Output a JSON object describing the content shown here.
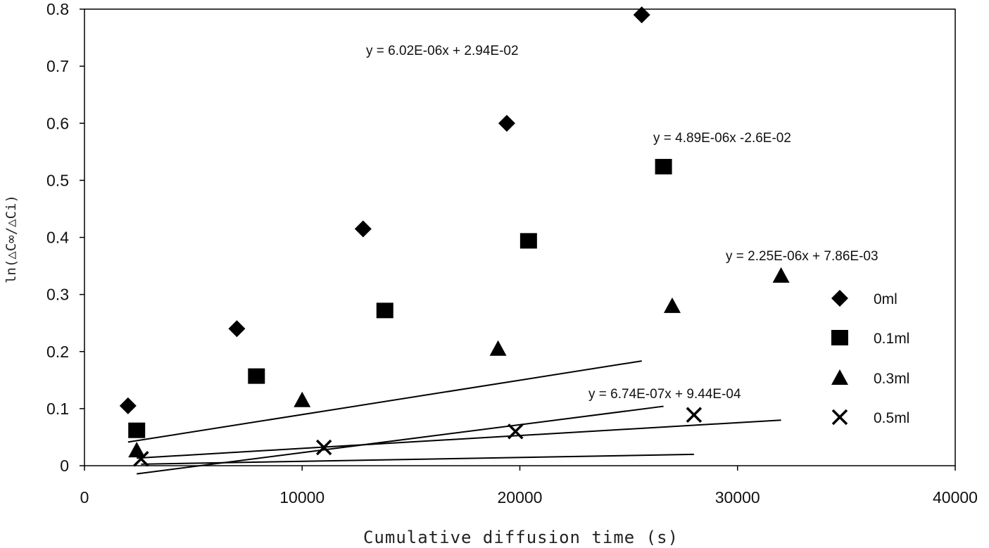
{
  "chart_data": {
    "type": "scatter",
    "xlabel": "Cumulative diffusion time (s)",
    "ylabel": "ln(△C∞/△Ci)",
    "xlim": [
      0,
      40000
    ],
    "ylim": [
      0,
      0.8
    ],
    "x_ticks": [
      "0",
      "10000",
      "20000",
      "30000",
      "40000"
    ],
    "y_ticks": [
      "0",
      "0.1",
      "0.2",
      "0.3",
      "0.4",
      "0.5",
      "0.6",
      "0.7",
      "0.8"
    ],
    "grid": false,
    "legend_position": "right",
    "series": [
      {
        "name": "0ml",
        "marker": "diamond",
        "points": [
          [
            2000,
            0.105
          ],
          [
            7000,
            0.24
          ],
          [
            12800,
            0.415
          ],
          [
            19400,
            0.6
          ],
          [
            25600,
            0.79
          ]
        ],
        "fit": {
          "slope": 6.02e-06,
          "intercept": 0.0294,
          "x_range": [
            2000,
            25600
          ]
        },
        "equation": "y = 6.02E-06x + 2.94E-02"
      },
      {
        "name": "0.1ml",
        "marker": "square",
        "points": [
          [
            2400,
            0.062
          ],
          [
            7900,
            0.157
          ],
          [
            13800,
            0.272
          ],
          [
            20400,
            0.394
          ],
          [
            26600,
            0.524
          ]
        ],
        "fit": {
          "slope": 4.89e-06,
          "intercept": -0.026,
          "x_range": [
            2400,
            26600
          ]
        },
        "equation": "y = 4.89E-06x -2.6E-02"
      },
      {
        "name": "0.3ml",
        "marker": "triangle",
        "points": [
          [
            2400,
            0.027
          ],
          [
            10000,
            0.115
          ],
          [
            19000,
            0.205
          ],
          [
            27000,
            0.28
          ],
          [
            32000,
            0.333
          ]
        ],
        "fit": {
          "slope": 2.25e-06,
          "intercept": 0.00786,
          "x_range": [
            2400,
            32000
          ]
        },
        "equation": "y = 2.25E-06x + 7.86E-03"
      },
      {
        "name": "0.5ml",
        "marker": "cross",
        "points": [
          [
            2600,
            0.012
          ],
          [
            11000,
            0.032
          ],
          [
            19800,
            0.06
          ],
          [
            28000,
            0.089
          ]
        ],
        "fit": {
          "slope": 6.74e-07,
          "intercept": 0.000944,
          "x_range": [
            2600,
            28000
          ]
        },
        "equation": "y = 6.74E-07x + 9.44E-04"
      }
    ]
  }
}
